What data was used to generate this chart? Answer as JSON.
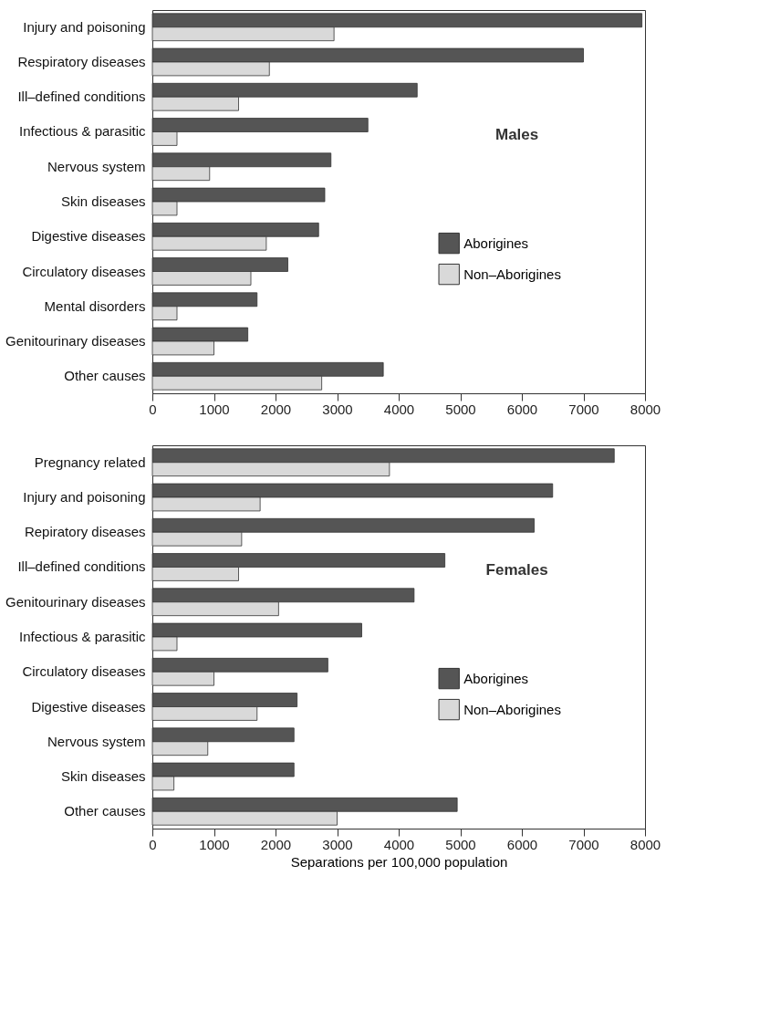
{
  "chart_data": [
    {
      "type": "bar",
      "orientation": "horizontal",
      "categories": [
        "Injury and poisoning",
        "Respiratory diseases",
        "Ill–defined conditions",
        "Infectious & parasitic",
        "Nervous system",
        "Skin diseases",
        "Digestive diseases",
        "Circulatory diseases",
        "Mental disorders",
        "Genitourinary diseases",
        "Other causes"
      ],
      "series": [
        {
          "name": "Aborigines",
          "color": "#555555",
          "values": [
            7950,
            7000,
            4300,
            3500,
            2900,
            2800,
            2700,
            2200,
            1700,
            1550,
            3750
          ]
        },
        {
          "name": "Non–Aborigines",
          "color": "#d9d9d9",
          "values": [
            2950,
            1900,
            1400,
            400,
            930,
            400,
            1850,
            1600,
            400,
            1000,
            2750
          ]
        }
      ],
      "xlim": [
        0,
        8000
      ],
      "xticks": [
        0,
        1000,
        2000,
        3000,
        4000,
        5000,
        6000,
        7000,
        8000
      ],
      "grid": false,
      "legend": "right",
      "annotations": [
        "Males"
      ]
    },
    {
      "type": "bar",
      "orientation": "horizontal",
      "categories": [
        "Pregnancy related",
        "Injury and poisoning",
        "Repiratory diseases",
        "Ill–defined conditions",
        "Genitourinary diseases",
        "Infectious & parasitic",
        "Circulatory diseases",
        "Digestive diseases",
        "Nervous system",
        "Skin diseases",
        "Other causes"
      ],
      "series": [
        {
          "name": "Aborigines",
          "color": "#555555",
          "values": [
            7500,
            6500,
            6200,
            4750,
            4250,
            3400,
            2850,
            2350,
            2300,
            2300,
            4950
          ]
        },
        {
          "name": "Non–Aborigines",
          "color": "#d9d9d9",
          "values": [
            3850,
            1750,
            1450,
            1400,
            2050,
            400,
            1000,
            1700,
            900,
            350,
            3000
          ]
        }
      ],
      "xlim": [
        0,
        8000
      ],
      "xticks": [
        0,
        1000,
        2000,
        3000,
        4000,
        5000,
        6000,
        7000,
        8000
      ],
      "xlabel": "Separations per 100,000 population",
      "grid": false,
      "legend": "right",
      "annotations": [
        "Females"
      ]
    }
  ]
}
